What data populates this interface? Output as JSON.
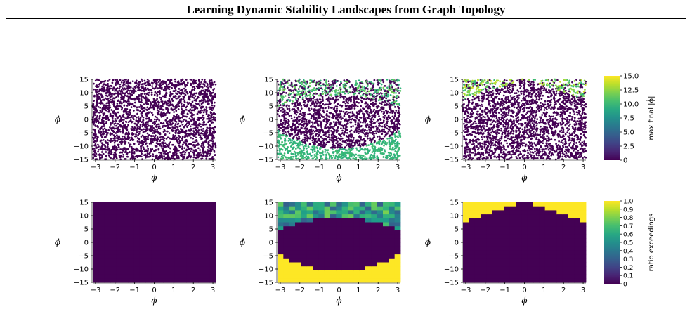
{
  "header": {
    "title": "Learning Dynamic Stability Landscapes from Graph Topology"
  },
  "figure": {
    "axis_labels": {
      "x": "ϕ",
      "y": "ϕ̇"
    },
    "x_ticks": [
      "−3",
      "−2",
      "−1",
      "0",
      "1",
      "2",
      "3"
    ],
    "y_ticks": [
      "15",
      "10",
      "5",
      "0",
      "−5",
      "−10",
      "−15"
    ],
    "colorbar_top": {
      "label": "max final |ϕ̇|",
      "ticks": [
        "15.0",
        "12.5",
        "10.0",
        "7.5",
        "5.0",
        "2.5",
        "0"
      ],
      "colormap": "viridis"
    },
    "colorbar_bottom": {
      "label": "ratio exceedings",
      "ticks": [
        "1.0",
        "0.9",
        "0.8",
        "0.7",
        "0.6",
        "0.5",
        "0.4",
        "0.3",
        "0.2",
        "0.1",
        "0"
      ],
      "colormap": "viridis"
    },
    "colors": {
      "viridis_low": "#440154",
      "viridis_mid": "#21918c",
      "viridis_green": "#3dbc74",
      "viridis_high": "#fde725"
    }
  },
  "chart_data": [
    {
      "type": "scatter",
      "row": 1,
      "col": 1,
      "xlim": [
        -3.14,
        3.14
      ],
      "ylim": [
        -15,
        15
      ],
      "description_values": "all points near 0 (uniform purple)"
    },
    {
      "type": "scatter",
      "row": 1,
      "col": 2,
      "xlim": [
        -3.14,
        3.14
      ],
      "ylim": [
        -15,
        15
      ],
      "basin": "lens-shaped purple region between y≈-11 and y≈9 at x=0, green (~10) below, mixed green/purple above"
    },
    {
      "type": "scatter",
      "row": 1,
      "col": 3,
      "xlim": [
        -3.14,
        3.14
      ],
      "ylim": [
        -15,
        15
      ],
      "basin": "purple below a peak boundary (y≈7 at |x|=π, y≈15 at x=0), green/yellow above"
    },
    {
      "type": "heatmap",
      "row": 2,
      "col": 1,
      "xlim": [
        -3.14,
        3.14
      ],
      "ylim": [
        -15,
        15
      ],
      "values": "all 0"
    },
    {
      "type": "heatmap",
      "row": 2,
      "col": 2,
      "xlim": [
        -3.14,
        3.14
      ],
      "ylim": [
        -15,
        15
      ],
      "basin": "lens-shaped 0 region, yellow (~1.0) below, mixed 0.3–0.8 above"
    },
    {
      "type": "heatmap",
      "row": 2,
      "col": 3,
      "xlim": [
        -3.14,
        3.14
      ],
      "ylim": [
        -15,
        15
      ],
      "basin": "0 below peak boundary, ~1.0 above"
    }
  ]
}
